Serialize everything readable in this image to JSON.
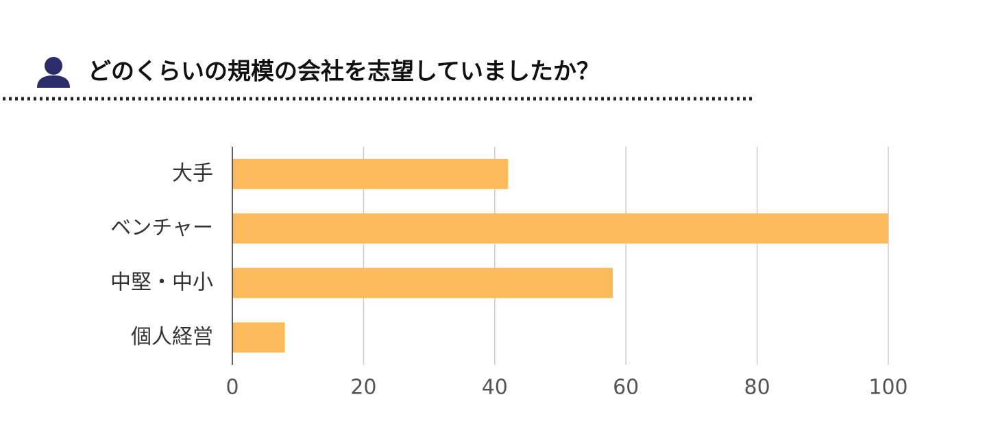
{
  "chart_data": {
    "type": "bar",
    "orientation": "horizontal",
    "title": "どのくらいの規模の会社を志望していましたか？",
    "categories": [
      "大手",
      "ベンチャー",
      "中堅・中小",
      "個人経営"
    ],
    "values": [
      42,
      100,
      58,
      8
    ],
    "color": "#fdba5b",
    "xlim": [
      0,
      100
    ],
    "xticks": [
      0,
      20,
      40,
      60,
      80,
      100
    ],
    "grid": true
  }
}
